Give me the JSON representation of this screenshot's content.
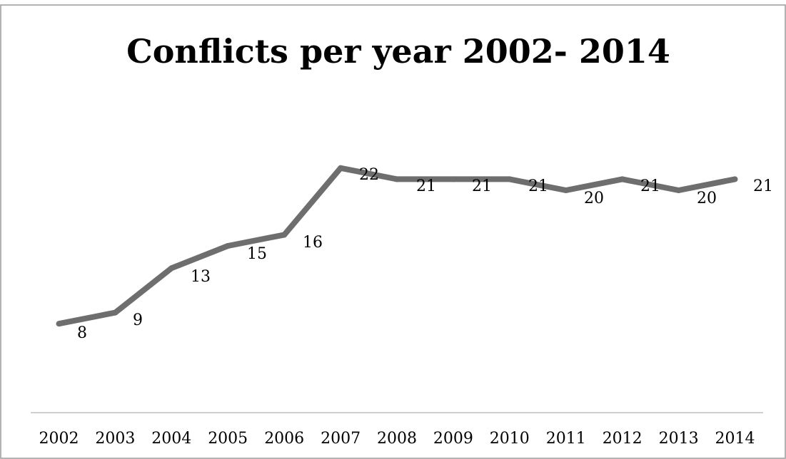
{
  "chart_data": {
    "type": "line",
    "title": "Conflicts per year 2002- 2014",
    "xlabel": "",
    "ylabel": "",
    "x": [
      "2002",
      "2003",
      "2004",
      "2005",
      "2006",
      "2007",
      "2008",
      "2009",
      "2010",
      "2011",
      "2012",
      "2013",
      "2014"
    ],
    "series": [
      {
        "values": [
          8,
          9,
          13,
          15,
          16,
          22,
          21,
          21,
          21,
          20,
          21,
          20,
          21
        ],
        "color": "#6e6e6e"
      }
    ],
    "data_labels": [
      "8",
      "9",
      "13",
      "15",
      "16",
      "22",
      "21",
      "21",
      "21",
      "20",
      "21",
      "20",
      "21"
    ],
    "ylim": [
      0,
      25
    ],
    "grid": false,
    "legend": "none",
    "line_color": "#6e6e6e",
    "axis_color": "#bfbfbf",
    "border_color": "#9a9a9a"
  }
}
